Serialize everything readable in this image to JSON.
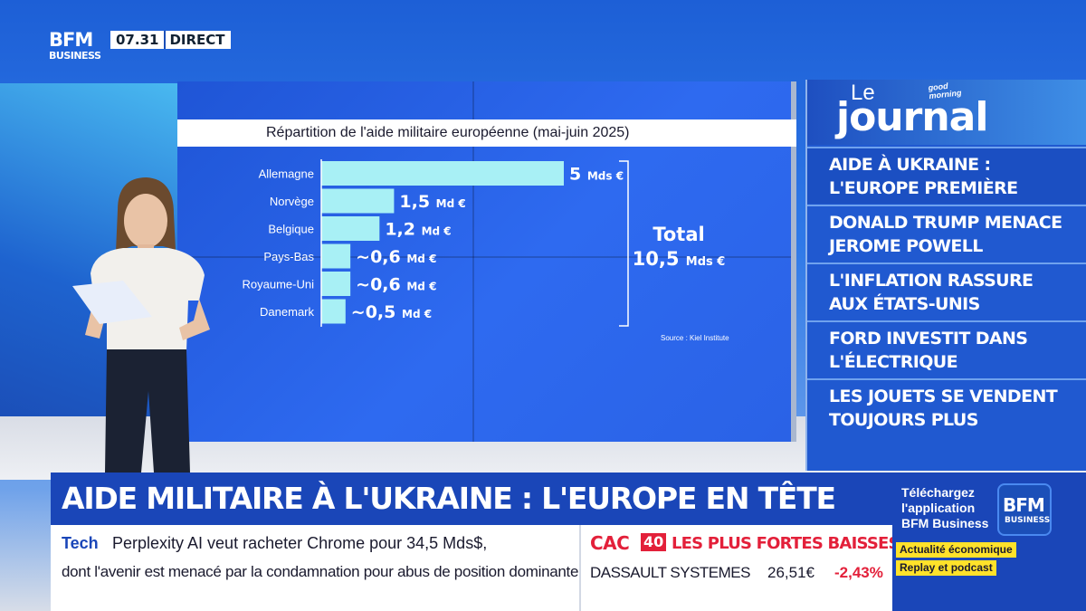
{
  "header": {
    "logo_line1": "BFM",
    "logo_line2": "BUSINESS",
    "clock": "07.31",
    "live": "DIRECT"
  },
  "chart_data": {
    "type": "bar",
    "title": "Répartition de l'aide militaire européenne (mai-juin 2025)",
    "categories": [
      "Allemagne",
      "Norvège",
      "Belgique",
      "Pays-Bas",
      "Royaume-Uni",
      "Danemark"
    ],
    "values": [
      5,
      1.5,
      1.2,
      0.6,
      0.6,
      0.5
    ],
    "value_labels": [
      {
        "num": "5",
        "unit": "Mds €"
      },
      {
        "num": "1,5",
        "unit": "Md €"
      },
      {
        "num": "1,2",
        "unit": "Md €"
      },
      {
        "num": "~0,6",
        "unit": "Md €"
      },
      {
        "num": "~0,6",
        "unit": "Md €"
      },
      {
        "num": "~0,5",
        "unit": "Md €"
      }
    ],
    "total_label": "Total",
    "total_num": "10,5",
    "total_unit": "Mds €",
    "source": "Source : Kiel Institute",
    "bar_color": "#a8f0f5",
    "label_color": "#ffffff"
  },
  "journal": {
    "le": "Le",
    "title": "journal",
    "show": "good morning",
    "items": [
      "AIDE À UKRAINE : L'EUROPE PREMIÈRE",
      "DONALD TRUMP MENACE JEROME POWELL",
      "L'INFLATION RASSURE AUX ÉTATS-UNIS",
      "FORD INVESTIT DANS L'ÉLECTRIQUE",
      "LES JOUETS SE VENDENT TOUJOURS PLUS"
    ]
  },
  "lower_third": {
    "headline": "AIDE MILITAIRE À L'UKRAINE : L'EUROPE EN TÊTE",
    "ticker_category": "Tech",
    "ticker_line1": "Perplexity AI veut racheter Chrome pour 34,5 Mds$,",
    "ticker_line2": "dont l'avenir est menacé par la condamnation pour abus de position dominante."
  },
  "market": {
    "index": "CAC",
    "index_badge": "40",
    "title": "LES PLUS FORTES BAISSES",
    "stock": "DASSAULT SYSTEMES",
    "price": "26,51€",
    "change": "-2,43%"
  },
  "promo": {
    "text": "Téléchargez l'application BFM Business",
    "logo_line1": "BFM",
    "logo_line2": "BUSINESS",
    "pill1": "Actualité économique",
    "pill2": "Replay et podcast"
  }
}
